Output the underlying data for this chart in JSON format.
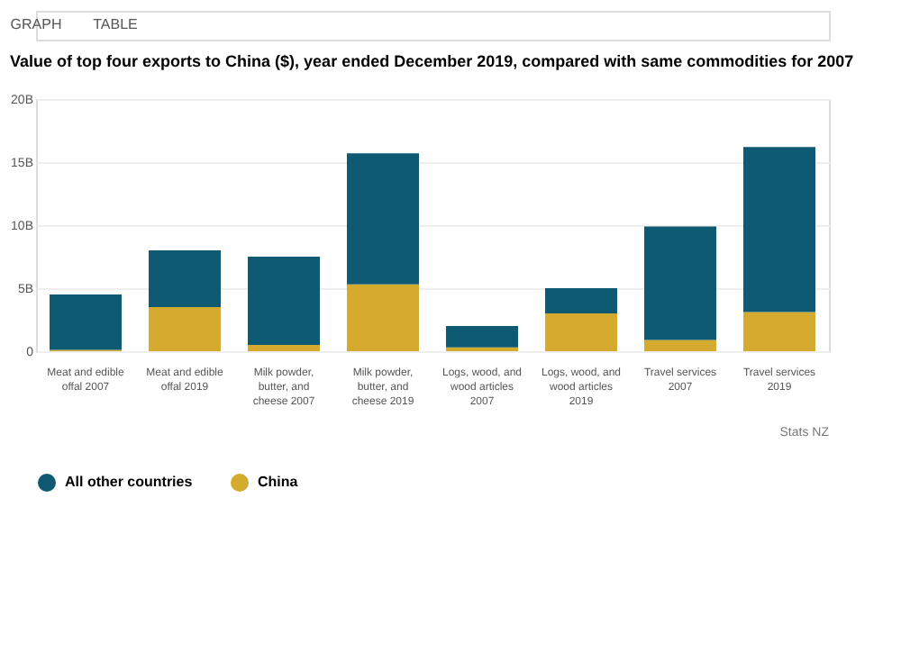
{
  "chart_data": {
    "type": "bar",
    "stacked": true,
    "title": "Value of top four exports to China ($), year ended December 2019, compared with same commodities for 2007",
    "categories": [
      "Meat and edible offal 2007",
      "Meat and edible offal 2019",
      "Milk powder, butter, and cheese 2007",
      "Milk powder, butter, and cheese 2019",
      "Logs, wood, and wood articles 2007",
      "Logs, wood, and wood articles 2019",
      "Travel services 2007",
      "Travel services 2019"
    ],
    "series": [
      {
        "name": "China",
        "color": "#d4ab2e",
        "values": [
          0.1,
          3.5,
          0.5,
          5.3,
          0.3,
          3.0,
          0.9,
          3.1
        ]
      },
      {
        "name": "All other countries",
        "color": "#0e5a73",
        "values": [
          4.4,
          4.5,
          7.0,
          10.4,
          1.7,
          2.0,
          9.0,
          13.1
        ]
      }
    ],
    "ylim": [
      0,
      20
    ],
    "yticks": [
      0,
      {
        "value": 5,
        "label": "5B"
      },
      {
        "value": 10,
        "label": "10B"
      },
      {
        "value": 15,
        "label": "15B"
      },
      {
        "value": 20,
        "label": "20B"
      }
    ],
    "grid": "y",
    "legend": "bottom",
    "annotations": [
      "GRAPH",
      "TABLE",
      "Stats NZ"
    ]
  }
}
